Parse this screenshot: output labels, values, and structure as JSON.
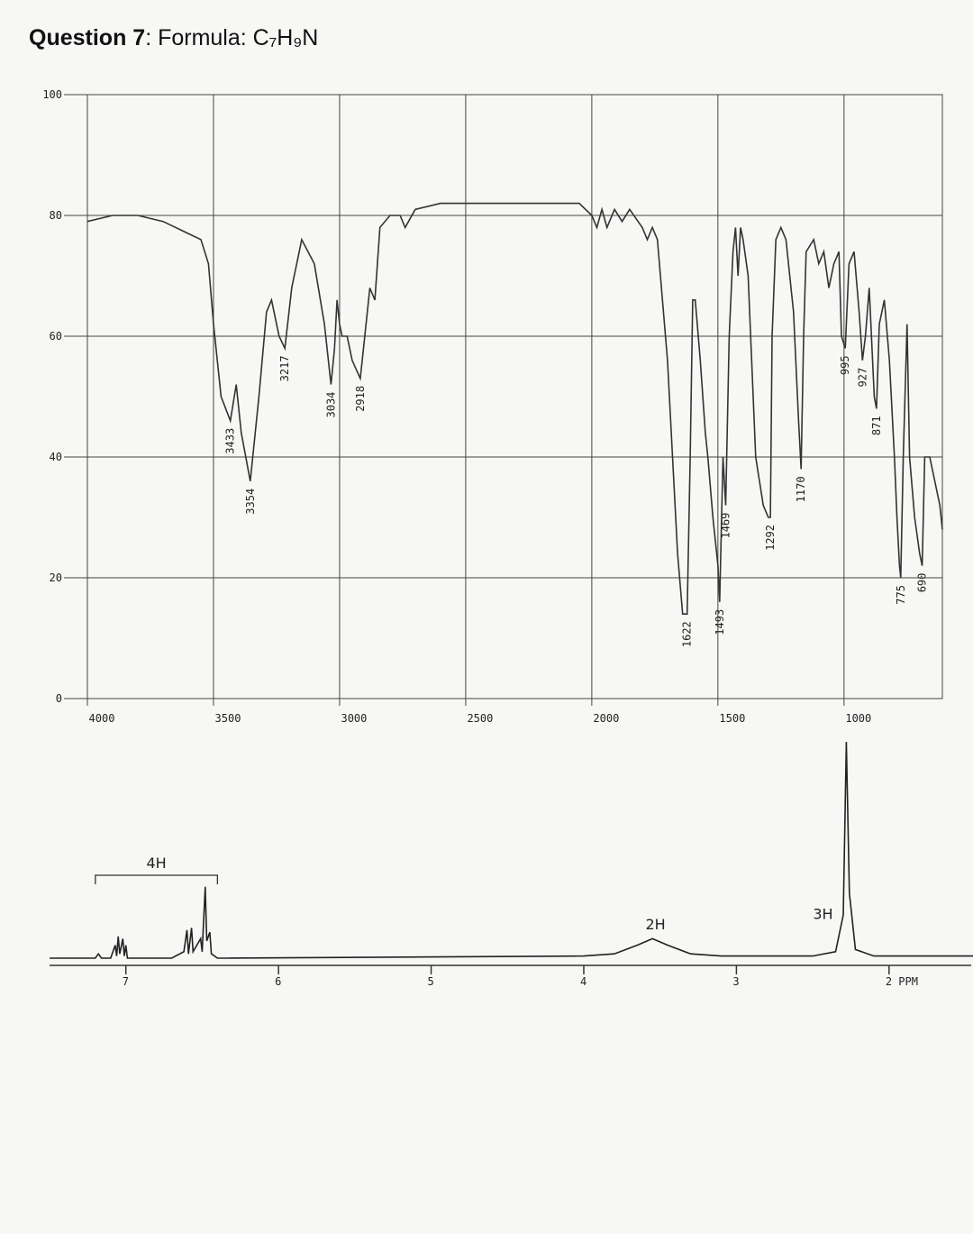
{
  "heading": [
    "Question 7",
    ": Formula: C₇H₉N"
  ],
  "chart_data": [
    {
      "type": "line",
      "x": [
        4000,
        3900,
        3800,
        3700,
        3600,
        3550,
        3520,
        3500,
        3470,
        3433,
        3410,
        3390,
        3354,
        3320,
        3290,
        3270,
        3240,
        3217,
        3190,
        3150,
        3100,
        3060,
        3034,
        3020,
        3010,
        3000,
        2990,
        2970,
        2950,
        2918,
        2900,
        2880,
        2860,
        2840,
        2800,
        2760,
        2740,
        2700,
        2600,
        2500,
        2400,
        2300,
        2200,
        2100,
        2050,
        2000,
        1980,
        1960,
        1940,
        1910,
        1880,
        1850,
        1800,
        1780,
        1760,
        1740,
        1700,
        1660,
        1640,
        1622,
        1610,
        1600,
        1590,
        1570,
        1550,
        1540,
        1520,
        1500,
        1493,
        1480,
        1469,
        1455,
        1440,
        1430,
        1420,
        1410,
        1400,
        1380,
        1350,
        1320,
        1300,
        1292,
        1285,
        1270,
        1250,
        1230,
        1200,
        1180,
        1170,
        1160,
        1150,
        1120,
        1100,
        1080,
        1060,
        1040,
        1020,
        1010,
        995,
        980,
        960,
        940,
        927,
        915,
        900,
        880,
        871,
        860,
        840,
        820,
        800,
        790,
        780,
        775,
        765,
        750,
        740,
        720,
        700,
        690,
        680,
        660,
        640,
        620,
        610
      ],
      "values": [
        79,
        80,
        80,
        79,
        77,
        76,
        72,
        62,
        50,
        46,
        52,
        44,
        36,
        50,
        64,
        66,
        60,
        58,
        68,
        76,
        72,
        62,
        52,
        58,
        66,
        62,
        60,
        60,
        56,
        53,
        60,
        68,
        66,
        78,
        80,
        80,
        78,
        81,
        82,
        82,
        82,
        82,
        82,
        82,
        82,
        80,
        78,
        81,
        78,
        81,
        79,
        81,
        78,
        76,
        78,
        76,
        56,
        24,
        14,
        14,
        40,
        66,
        66,
        56,
        44,
        40,
        30,
        22,
        16,
        40,
        32,
        60,
        74,
        78,
        70,
        78,
        76,
        70,
        40,
        32,
        30,
        30,
        60,
        76,
        78,
        76,
        64,
        46,
        38,
        60,
        74,
        76,
        72,
        74,
        68,
        72,
        74,
        60,
        58,
        72,
        74,
        64,
        56,
        60,
        68,
        50,
        48,
        62,
        66,
        56,
        40,
        30,
        22,
        20,
        40,
        62,
        40,
        30,
        24,
        22,
        40,
        40,
        36,
        32,
        28
      ],
      "color": "#333333",
      "xlim": [
        4000,
        610
      ],
      "ylim": [
        0,
        100
      ],
      "xticks": [
        4000,
        3500,
        3000,
        2500,
        2000,
        1500,
        1000
      ],
      "yticks": [
        0,
        20,
        40,
        60,
        80,
        100
      ],
      "grid": true,
      "annotations": [
        3433,
        3354,
        3217,
        3034,
        2918,
        1622,
        1493,
        1469,
        1292,
        1170,
        995,
        927,
        871,
        775,
        690
      ]
    },
    {
      "type": "line",
      "x": [
        7.5,
        7.2,
        7.18,
        7.16,
        7.1,
        7.07,
        7.06,
        7.05,
        7.04,
        7.02,
        7.01,
        7.0,
        6.99,
        6.7,
        6.62,
        6.6,
        6.59,
        6.57,
        6.56,
        6.51,
        6.5,
        6.48,
        6.47,
        6.45,
        6.44,
        6.4,
        4.0,
        3.8,
        3.65,
        3.55,
        3.45,
        3.3,
        3.1,
        2.5,
        2.35,
        2.3,
        2.28,
        2.26,
        2.22,
        2.1,
        1.45
      ],
      "values": [
        0,
        0,
        2,
        0,
        0,
        6,
        1,
        10,
        2,
        9,
        1,
        6,
        0,
        0,
        3,
        13,
        2,
        14,
        3,
        9,
        3,
        33,
        8,
        12,
        2,
        0,
        1,
        2,
        6,
        9,
        6,
        2,
        1,
        1,
        3,
        20,
        100,
        30,
        4,
        1,
        1
      ],
      "color": "#222222",
      "xlim": [
        7.5,
        1.45
      ],
      "ylim": [
        0,
        100
      ],
      "xticks": [
        7,
        6,
        5,
        4,
        3,
        {
          "value": 2,
          "label": "2 PPM"
        }
      ],
      "annotations": [
        {
          "text": "4H",
          "range": [
            7.2,
            6.4
          ]
        },
        {
          "text": "2H",
          "x": 3.53
        },
        {
          "text": "3H",
          "x": 2.32
        }
      ]
    }
  ]
}
